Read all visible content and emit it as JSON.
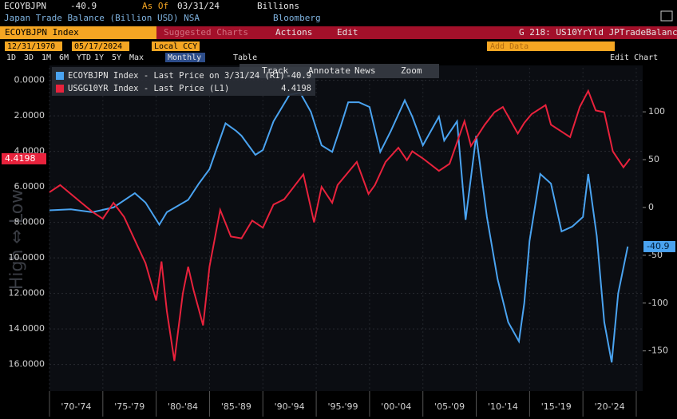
{
  "ui": {
    "ticker": "ECOYBJPN",
    "last": "-40.9",
    "as_of_label": "As Of",
    "as_of": "03/31/24",
    "units": "Billions",
    "description": "Japan Trade Balance (Billion USD) NSA",
    "source": "Bloomberg",
    "security": "ECOYBJPN Index",
    "suggested": "Suggested Charts",
    "actions": "Actions",
    "edit": "Edit",
    "chart_id": "G 218: US10YrYld JPTradeBalanc",
    "start_date": "12/31/1970",
    "end_date": "05/17/2024",
    "currency": "Local CCY",
    "add_data": "Add Data",
    "ranges": [
      "1D",
      "3D",
      "1M",
      "6M",
      "YTD",
      "1Y",
      "5Y",
      "Max"
    ],
    "frequency": "Monthly",
    "table": "Table",
    "edit_chart": "Edit Chart",
    "tools": [
      "Track",
      "Annotate",
      "News",
      "Zoom"
    ],
    "watermark": "High ⇔ Low"
  },
  "chart_data": {
    "type": "line",
    "grid": true,
    "xlim": [
      1970,
      2025.6
    ],
    "xticks": [
      1970,
      1975,
      1980,
      1985,
      1990,
      1995,
      2000,
      2005,
      2010,
      2015,
      2020,
      2025
    ],
    "period_labels": [
      "'70-'74",
      "'75-'79",
      "'80-'84",
      "'85-'89",
      "'90-'94",
      "'95-'99",
      "'00-'04",
      "'05-'09",
      "'10-'14",
      "'15-'19",
      "'20-'24"
    ],
    "ylim": [
      17.5,
      -0.7
    ],
    "yticks": [
      {
        "value": 0,
        "label": "0.0000"
      },
      {
        "value": 2,
        "label": "2.0000"
      },
      {
        "value": 4,
        "label": "4.0000"
      },
      {
        "value": 6,
        "label": "6.0000"
      },
      {
        "value": 8,
        "label": "8.0000"
      },
      {
        "value": 10,
        "label": "10.0000"
      },
      {
        "value": 12,
        "label": "12.0000"
      },
      {
        "value": 14,
        "label": "14.0000"
      },
      {
        "value": 16,
        "label": "16.0000"
      }
    ],
    "y2lim": [
      -192,
      146
    ],
    "y2ticks": [
      -150,
      -100,
      -50,
      0,
      50,
      100
    ],
    "series": [
      {
        "name": "ECOYBJPN Index - Last Price on 3/31/24 (R1)",
        "last_label": "-40.9",
        "color": "#4aa3f0",
        "axis": "y2",
        "x": [
          1970,
          1972,
          1974,
          1976,
          1978,
          1979,
          1980.3,
          1981,
          1983,
          1984,
          1985,
          1986.5,
          1987.5,
          1988,
          1989.3,
          1990,
          1991,
          1992.5,
          1993.5,
          1994.5,
          1995.5,
          1996.5,
          1997.3,
          1998,
          1999,
          2000,
          2001,
          2002,
          2003.3,
          2004,
          2005,
          2006.5,
          2007,
          2008.2,
          2009,
          2010,
          2011,
          2012,
          2013,
          2014,
          2014.5,
          2015,
          2016,
          2017,
          2018,
          2019,
          2020,
          2020.5,
          2021.3,
          2022,
          2022.7,
          2023.3,
          2024.2
        ],
        "values": [
          -3,
          -2,
          -5,
          0,
          15,
          5,
          -18,
          -5,
          8,
          25,
          40,
          88,
          80,
          75,
          55,
          60,
          90,
          118,
          120,
          100,
          65,
          58,
          85,
          110,
          110,
          105,
          58,
          80,
          112,
          95,
          65,
          95,
          70,
          90,
          -13,
          75,
          -10,
          -75,
          -120,
          -140,
          -100,
          -35,
          35,
          25,
          -25,
          -20,
          -10,
          35,
          -30,
          -120,
          -162,
          -90,
          -40.9
        ]
      },
      {
        "name": "USGG10YR Index - Last Price (L1)",
        "last_label": "4.4198",
        "color": "#e8223c",
        "axis": "y",
        "x": [
          1970,
          1971,
          1972,
          1973,
          1974,
          1975,
          1976,
          1977,
          1978,
          1979,
          1980,
          1980.5,
          1981,
          1981.7,
          1982.5,
          1983,
          1983.5,
          1984.4,
          1985,
          1986,
          1987,
          1988,
          1989,
          1990,
          1991,
          1992,
          1993.8,
          1994.8,
          1995.5,
          1996.5,
          1997,
          1998.8,
          1999.9,
          2000.5,
          2001.5,
          2002.7,
          2003.5,
          2004,
          2005,
          2006.5,
          2007.5,
          2008.9,
          2009.5,
          2010.8,
          2011.7,
          2012.5,
          2013.9,
          2014.5,
          2015.2,
          2016.5,
          2017,
          2018.8,
          2019.7,
          2020.5,
          2021.2,
          2022,
          2022.8,
          2023.8,
          2024.4
        ],
        "values": [
          6.3,
          5.9,
          6.4,
          6.9,
          7.4,
          7.8,
          6.9,
          7.7,
          9.0,
          10.3,
          12.4,
          10.2,
          13.0,
          15.8,
          12.0,
          10.5,
          11.8,
          13.8,
          10.5,
          7.3,
          8.8,
          8.9,
          7.9,
          8.3,
          7.0,
          6.7,
          5.3,
          8.0,
          6.0,
          6.9,
          5.9,
          4.6,
          6.4,
          5.9,
          4.6,
          3.8,
          4.5,
          4.0,
          4.4,
          5.1,
          4.7,
          2.3,
          3.7,
          2.5,
          1.8,
          1.5,
          3.0,
          2.4,
          1.9,
          1.4,
          2.5,
          3.2,
          1.5,
          0.6,
          1.7,
          1.8,
          4.0,
          4.9,
          4.4198
        ]
      }
    ]
  }
}
